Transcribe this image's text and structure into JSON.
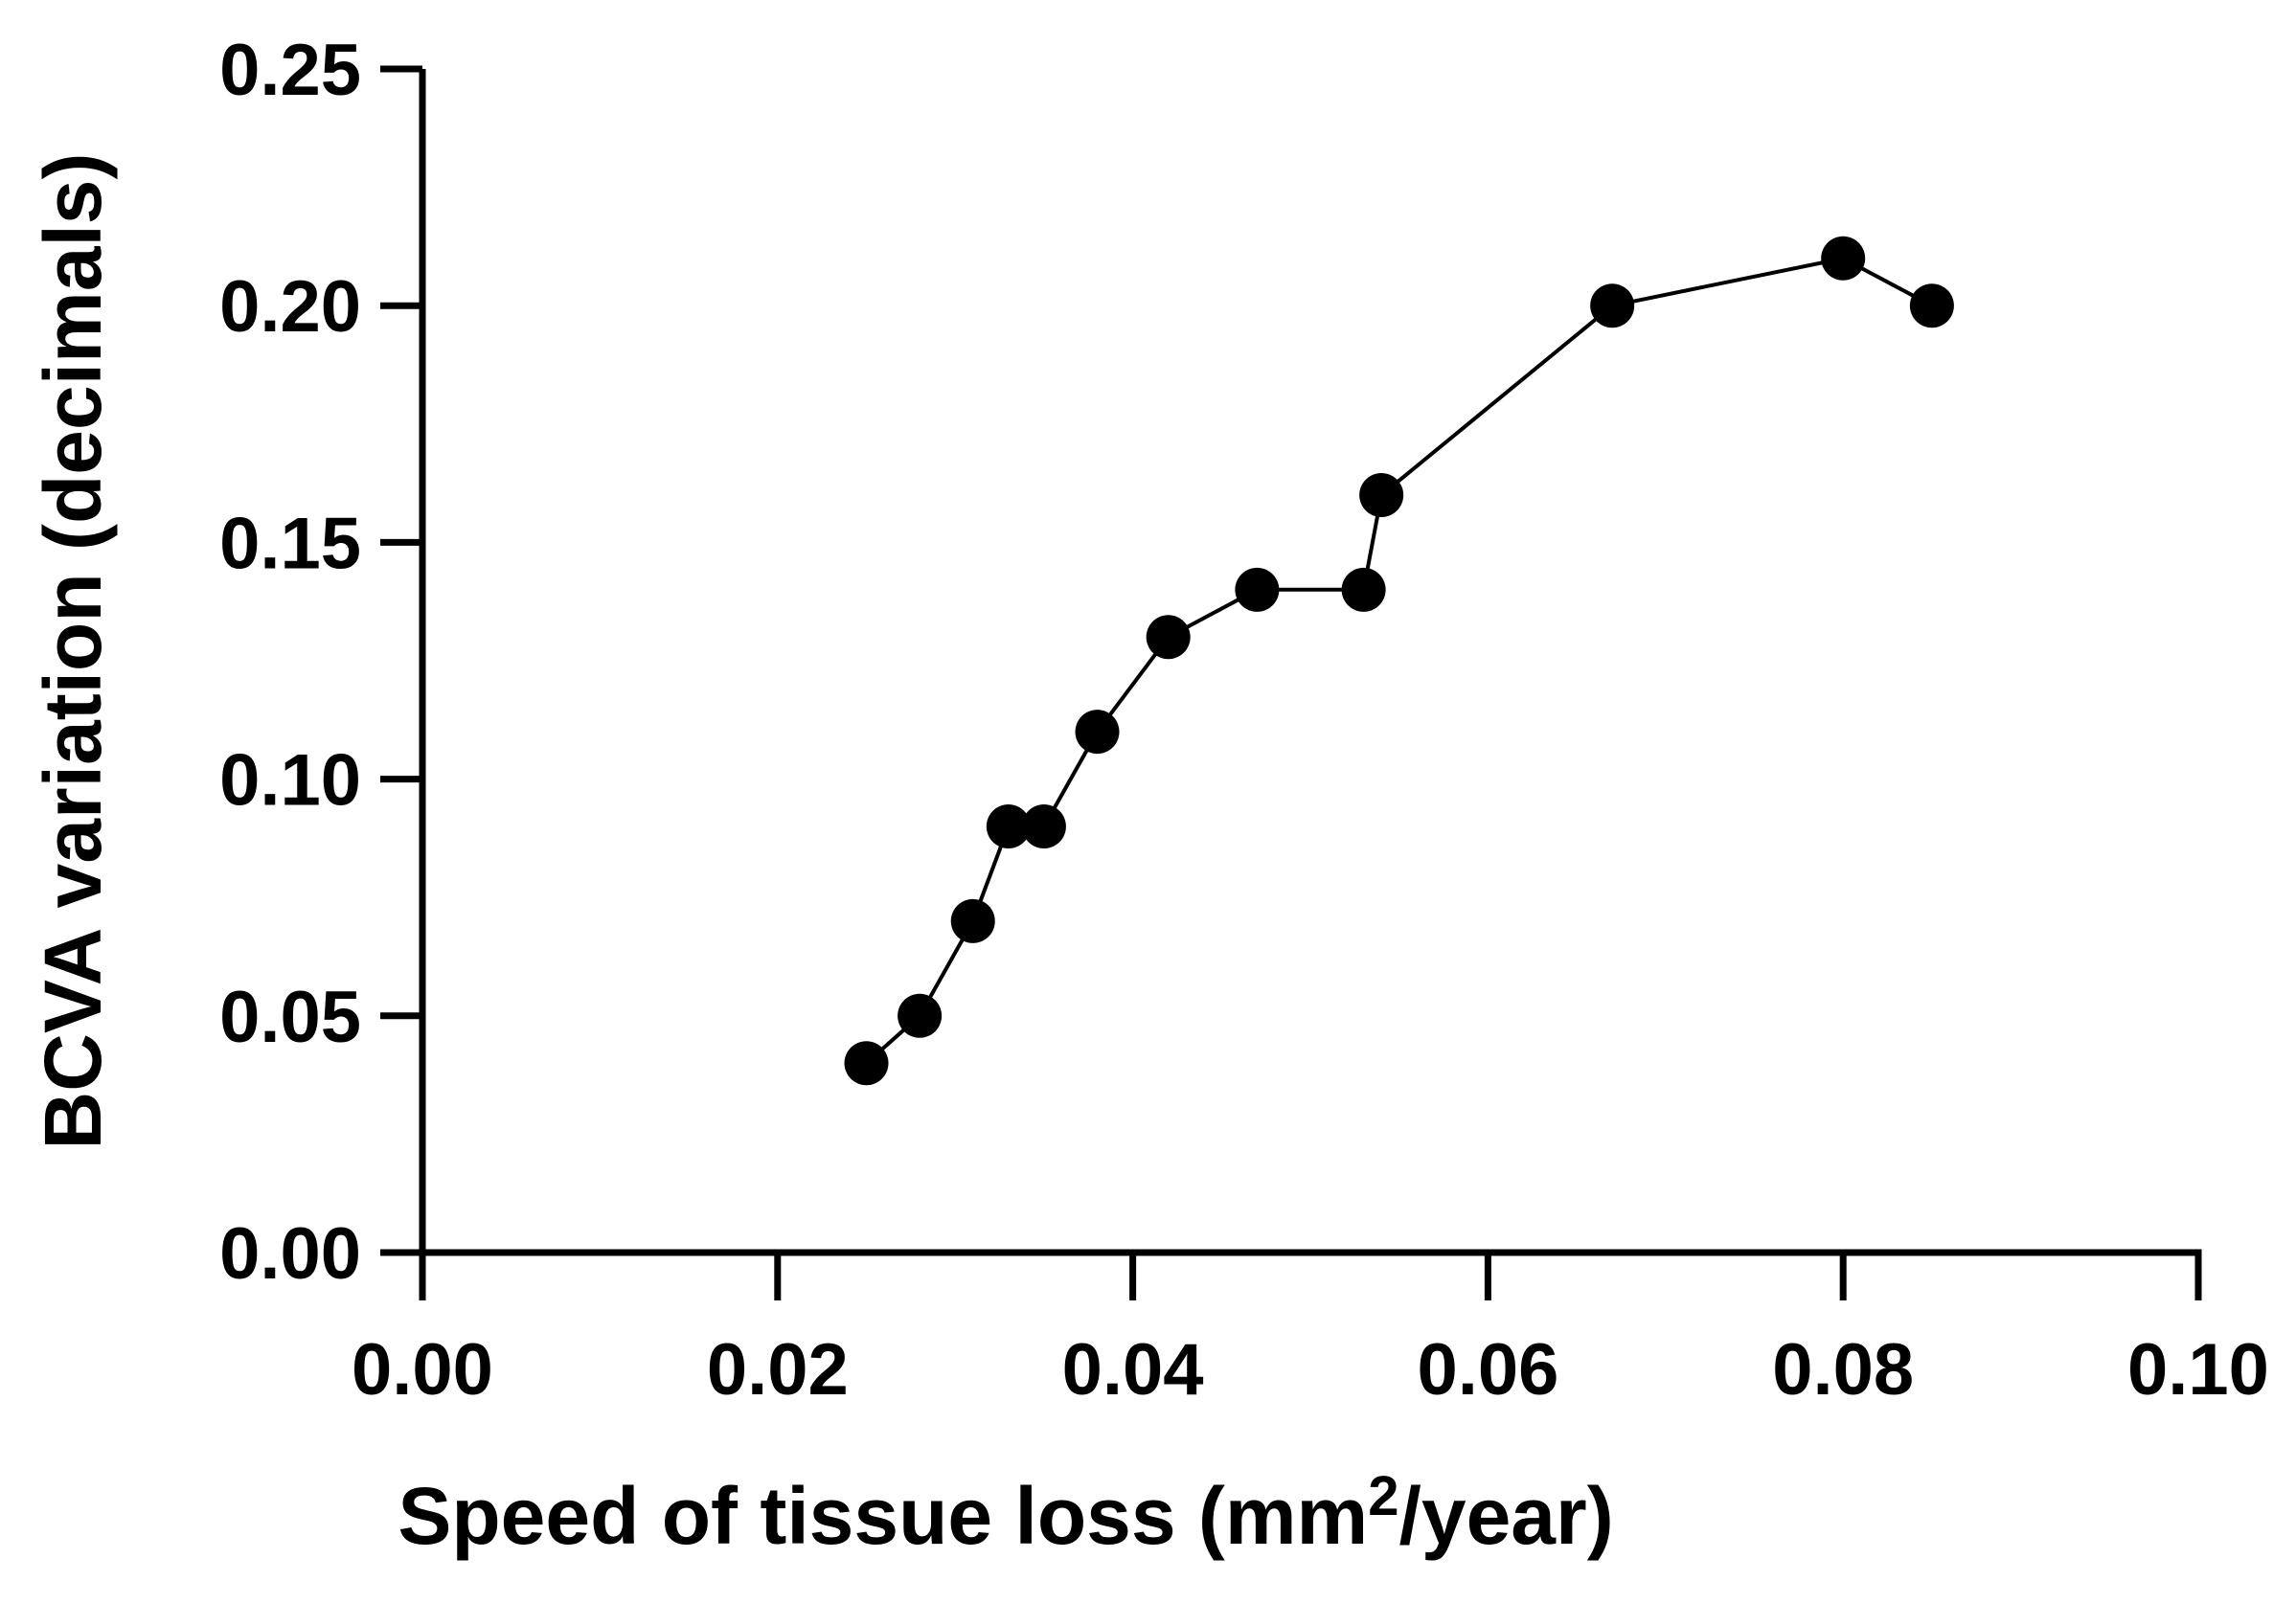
{
  "chart_data": {
    "type": "line",
    "title": "",
    "xlabel": "Speed of tissue loss (mm",
    "xlabel_superscript": "2",
    "xlabel_suffix": "/year)",
    "ylabel": "BCVA variation (decimals)",
    "xlim": [
      0,
      0.1
    ],
    "ylim": [
      0,
      0.25
    ],
    "xticks": [
      "0.00",
      "0.02",
      "0.04",
      "0.06",
      "0.08",
      "0.10"
    ],
    "yticks": [
      "0.00",
      "0.05",
      "0.10",
      "0.15",
      "0.20",
      "0.25"
    ],
    "grid": false,
    "legend": "none",
    "series": [
      {
        "name": "BCVA variation",
        "marker": "filled-circle",
        "color": "#000000",
        "x": [
          0.025,
          0.028,
          0.031,
          0.033,
          0.035,
          0.038,
          0.042,
          0.047,
          0.053,
          0.054,
          0.067,
          0.08,
          0.085
        ],
        "y": [
          0.04,
          0.05,
          0.07,
          0.09,
          0.09,
          0.11,
          0.13,
          0.14,
          0.14,
          0.16,
          0.2,
          0.21,
          0.2
        ]
      }
    ]
  }
}
